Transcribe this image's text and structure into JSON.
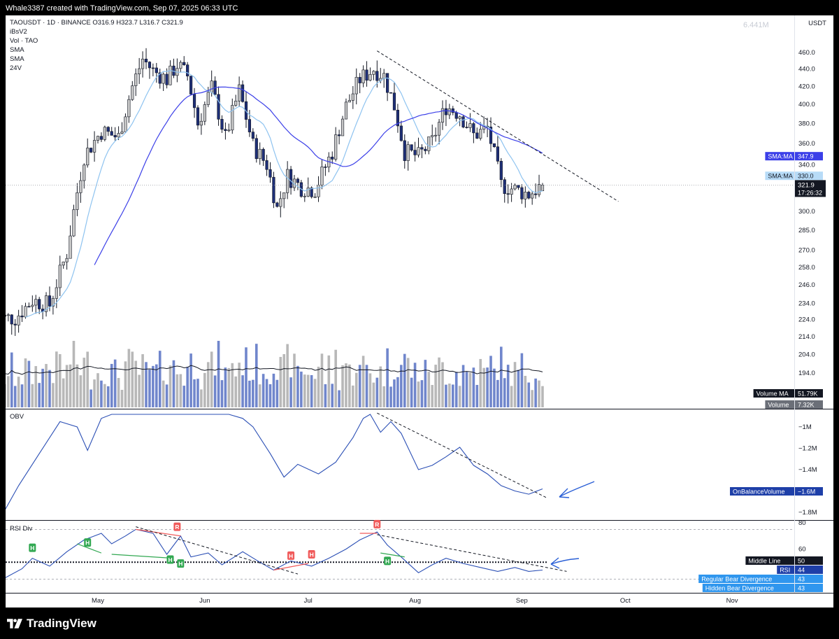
{
  "header": {
    "caption": "Whale3387 created with TradingView.com, Sep 07, 2025 06:33 UTC"
  },
  "footer": {
    "brand": "TradingView"
  },
  "legend": {
    "line1": "TAOUSDT · 1D · BINANCE  O316.9  H323.7  L316.7  C321.9",
    "line2": "iBsV2",
    "line3": "Vol · TAO",
    "line4": "SMA",
    "line5": "SMA",
    "line6": "24V"
  },
  "watermark_volume": "6.441M",
  "currency": "USDT",
  "colors": {
    "bull": "#c7c7c7",
    "bear": "#1e2f78",
    "sma_fast": "#8ec3f0",
    "sma_slow": "#3b3fe8",
    "obv": "#2b4fb5",
    "rsi": "#2b4fb5",
    "bear_div": "#f05a5a",
    "hidden_div": "#32a852"
  },
  "chart_data": [
    {
      "type": "candlestick",
      "title": "TAOUSDT · 1D · BINANCE",
      "ohlc_latest": {
        "O": 316.9,
        "H": 323.7,
        "L": 316.7,
        "C": 321.9
      },
      "x_ticks": [
        "May",
        "Jun",
        "Jul",
        "Aug",
        "Sep",
        "Oct",
        "Nov"
      ],
      "y_ticks": [
        460.0,
        440.0,
        420.0,
        400.0,
        380.0,
        360.0,
        340.0,
        321.9,
        300.0,
        285.0,
        270.0,
        258.0,
        246.0,
        234.0,
        224.0,
        214.0,
        204.0,
        194.0
      ],
      "y_scale": "log",
      "close_series_approx": [
        {
          "date": "2025-04-07",
          "close": 225
        },
        {
          "date": "2025-04-12",
          "close": 236
        },
        {
          "date": "2025-04-17",
          "close": 233
        },
        {
          "date": "2025-04-22",
          "close": 268
        },
        {
          "date": "2025-04-27",
          "close": 348
        },
        {
          "date": "2025-05-02",
          "close": 372
        },
        {
          "date": "2025-05-07",
          "close": 366
        },
        {
          "date": "2025-05-11",
          "close": 420
        },
        {
          "date": "2025-05-14",
          "close": 452
        },
        {
          "date": "2025-05-17",
          "close": 438
        },
        {
          "date": "2025-05-21",
          "close": 428
        },
        {
          "date": "2025-05-24",
          "close": 445
        },
        {
          "date": "2025-05-27",
          "close": 432
        },
        {
          "date": "2025-05-30",
          "close": 380
        },
        {
          "date": "2025-06-03",
          "close": 418
        },
        {
          "date": "2025-06-07",
          "close": 365
        },
        {
          "date": "2025-06-11",
          "close": 415
        },
        {
          "date": "2025-06-15",
          "close": 358
        },
        {
          "date": "2025-06-19",
          "close": 340
        },
        {
          "date": "2025-06-22",
          "close": 302
        },
        {
          "date": "2025-06-25",
          "close": 330
        },
        {
          "date": "2025-06-29",
          "close": 320
        },
        {
          "date": "2025-07-03",
          "close": 318
        },
        {
          "date": "2025-07-08",
          "close": 352
        },
        {
          "date": "2025-07-12",
          "close": 398
        },
        {
          "date": "2025-07-16",
          "close": 428
        },
        {
          "date": "2025-07-20",
          "close": 440
        },
        {
          "date": "2025-07-23",
          "close": 432
        },
        {
          "date": "2025-07-26",
          "close": 398
        },
        {
          "date": "2025-07-29",
          "close": 352
        },
        {
          "date": "2025-08-02",
          "close": 348
        },
        {
          "date": "2025-08-06",
          "close": 362
        },
        {
          "date": "2025-08-10",
          "close": 398
        },
        {
          "date": "2025-08-14",
          "close": 390
        },
        {
          "date": "2025-08-18",
          "close": 368
        },
        {
          "date": "2025-08-22",
          "close": 375
        },
        {
          "date": "2025-08-26",
          "close": 322
        },
        {
          "date": "2025-08-30",
          "close": 318
        },
        {
          "date": "2025-09-03",
          "close": 314
        },
        {
          "date": "2025-09-07",
          "close": 321.9
        }
      ],
      "series": [
        {
          "name": "SMA:MA",
          "value": 347.9
        },
        {
          "name": "SMA:MA",
          "value": 330.0
        }
      ],
      "price_label": "321.9",
      "countdown": "17:26:32",
      "trendline": "descending, from Jul 21 high through Sep 7"
    },
    {
      "type": "bar",
      "title": "Vol · TAO",
      "series": [
        {
          "name": "Volume MA",
          "value": "51.79K"
        },
        {
          "name": "Volume",
          "value": "7.32K"
        }
      ]
    },
    {
      "type": "line",
      "title": "OBV",
      "y_ticks": [
        "−1M",
        "−1.2M",
        "−1.4M",
        "−1.6M",
        "−1.8M"
      ],
      "series": [
        {
          "name": "OnBalanceVolume",
          "value": "−1.6M"
        }
      ],
      "points": [
        {
          "date": "2025-04-04",
          "v": -1.78
        },
        {
          "date": "2025-04-08",
          "v": -1.55
        },
        {
          "date": "2025-04-14",
          "v": -1.25
        },
        {
          "date": "2025-04-20",
          "v": -0.95
        },
        {
          "date": "2025-04-25",
          "v": -1.0
        },
        {
          "date": "2025-04-28",
          "v": -1.22
        },
        {
          "date": "2025-05-02",
          "v": -0.92
        },
        {
          "date": "2025-05-05",
          "v": -0.85
        },
        {
          "date": "2025-06-08",
          "v": -0.88
        },
        {
          "date": "2025-06-12",
          "v": -0.92
        },
        {
          "date": "2025-06-15",
          "v": -1.0
        },
        {
          "date": "2025-06-20",
          "v": -1.25
        },
        {
          "date": "2025-06-24",
          "v": -1.47
        },
        {
          "date": "2025-06-28",
          "v": -1.35
        },
        {
          "date": "2025-07-04",
          "v": -1.44
        },
        {
          "date": "2025-07-09",
          "v": -1.33
        },
        {
          "date": "2025-07-14",
          "v": -1.1
        },
        {
          "date": "2025-07-17",
          "v": -0.92
        },
        {
          "date": "2025-07-19",
          "v": -0.85
        },
        {
          "date": "2025-07-22",
          "v": -1.05
        },
        {
          "date": "2025-07-25",
          "v": -0.95
        },
        {
          "date": "2025-07-28",
          "v": -1.06
        },
        {
          "date": "2025-08-02",
          "v": -1.4
        },
        {
          "date": "2025-08-06",
          "v": -1.36
        },
        {
          "date": "2025-08-10",
          "v": -1.28
        },
        {
          "date": "2025-08-14",
          "v": -1.19
        },
        {
          "date": "2025-08-18",
          "v": -1.36
        },
        {
          "date": "2025-08-22",
          "v": -1.44
        },
        {
          "date": "2025-08-26",
          "v": -1.55
        },
        {
          "date": "2025-08-30",
          "v": -1.6
        },
        {
          "date": "2025-09-03",
          "v": -1.63
        },
        {
          "date": "2025-09-07",
          "v": -1.58
        }
      ]
    },
    {
      "type": "line",
      "title": "RSI Div",
      "y_ticks": [
        80,
        60
      ],
      "ylim": [
        30,
        80
      ],
      "series": [
        {
          "name": "Middle Line",
          "value": 50
        },
        {
          "name": "RSI",
          "value": 44
        },
        {
          "name": "Regular Bear Divergence",
          "value": 43
        },
        {
          "name": "Hidden Bear Divergence",
          "value": 43
        }
      ],
      "points": [
        {
          "date": "2025-04-04",
          "v": 38
        },
        {
          "date": "2025-04-09",
          "v": 45
        },
        {
          "date": "2025-04-12",
          "v": 53
        },
        {
          "date": "2025-04-17",
          "v": 47
        },
        {
          "date": "2025-04-22",
          "v": 58
        },
        {
          "date": "2025-04-27",
          "v": 67
        },
        {
          "date": "2025-05-02",
          "v": 72
        },
        {
          "date": "2025-05-05",
          "v": 64
        },
        {
          "date": "2025-05-09",
          "v": 70
        },
        {
          "date": "2025-05-12",
          "v": 75
        },
        {
          "date": "2025-05-17",
          "v": 72
        },
        {
          "date": "2025-05-21",
          "v": 56
        },
        {
          "date": "2025-05-25",
          "v": 70
        },
        {
          "date": "2025-05-28",
          "v": 54
        },
        {
          "date": "2025-06-02",
          "v": 57
        },
        {
          "date": "2025-06-06",
          "v": 48
        },
        {
          "date": "2025-06-12",
          "v": 58
        },
        {
          "date": "2025-06-17",
          "v": 50
        },
        {
          "date": "2025-06-21",
          "v": 44
        },
        {
          "date": "2025-06-26",
          "v": 51
        },
        {
          "date": "2025-07-02",
          "v": 47
        },
        {
          "date": "2025-07-07",
          "v": 53
        },
        {
          "date": "2025-07-12",
          "v": 60
        },
        {
          "date": "2025-07-16",
          "v": 67
        },
        {
          "date": "2025-07-21",
          "v": 73
        },
        {
          "date": "2025-07-24",
          "v": 63
        },
        {
          "date": "2025-07-28",
          "v": 54
        },
        {
          "date": "2025-08-02",
          "v": 42
        },
        {
          "date": "2025-08-06",
          "v": 48
        },
        {
          "date": "2025-08-10",
          "v": 53
        },
        {
          "date": "2025-08-15",
          "v": 49
        },
        {
          "date": "2025-08-20",
          "v": 46
        },
        {
          "date": "2025-08-25",
          "v": 43
        },
        {
          "date": "2025-08-30",
          "v": 46
        },
        {
          "date": "2025-09-03",
          "v": 43
        },
        {
          "date": "2025-09-07",
          "v": 44
        }
      ],
      "markers": [
        "H",
        "H",
        "H",
        "H",
        "R",
        "H",
        "H",
        "R",
        "R"
      ]
    }
  ]
}
